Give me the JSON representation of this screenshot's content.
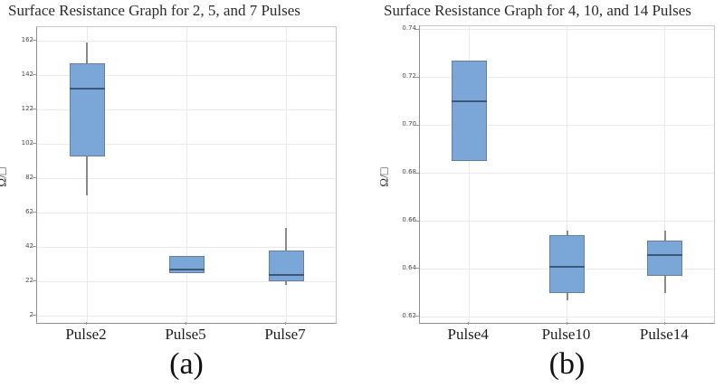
{
  "colors": {
    "box_fill": "#7aa6d8",
    "box_border": "#63809f",
    "median": "#3d5875",
    "whisker": "#8a8a8a",
    "grid": "#ebebeb",
    "plot_border": "#c9c9c9",
    "text": "#2b2b2b"
  },
  "chart_data": [
    {
      "type": "boxplot",
      "title": "Surface Resistance Graph for 2, 5, and 7 Pulses",
      "ylabel": "Ω/□",
      "caption": "(a)",
      "categories": [
        "Pulse2",
        "Pulse5",
        "Pulse7"
      ],
      "yticks": [
        2,
        22,
        42,
        62,
        82,
        102,
        122,
        142,
        162
      ],
      "ytick_labels": [
        "2",
        "22",
        "42",
        "62",
        "82",
        "102",
        "122",
        "142",
        "162"
      ],
      "ylim": [
        -2,
        170
      ],
      "grid": true,
      "legend": "none",
      "series": [
        {
          "category": "Pulse2",
          "whisker_low": 72,
          "q1": 95,
          "median": 134,
          "q3": 149,
          "whisker_high": 161
        },
        {
          "category": "Pulse5",
          "whisker_low": 27,
          "q1": 27,
          "median": 29,
          "q3": 37,
          "whisker_high": 37
        },
        {
          "category": "Pulse7",
          "whisker_low": 20,
          "q1": 22,
          "median": 26,
          "q3": 40,
          "whisker_high": 53
        }
      ]
    },
    {
      "type": "boxplot",
      "title": "Surface Resistance Graph for 4, 10, and 14 Pulses",
      "ylabel": "Ω/□",
      "caption": "(b)",
      "categories": [
        "Pulse4",
        "Pulse10",
        "Pulse14"
      ],
      "yticks": [
        0.62,
        0.64,
        0.66,
        0.68,
        0.7,
        0.72,
        0.74
      ],
      "ytick_labels": [
        "0.62",
        "0.64",
        "0.66",
        "0.68",
        "0.70",
        "0.72",
        "0.74"
      ],
      "ylim": [
        0.6175,
        0.7415
      ],
      "grid": true,
      "legend": "none",
      "series": [
        {
          "category": "Pulse4",
          "whisker_low": 0.685,
          "q1": 0.685,
          "median": 0.71,
          "q3": 0.727,
          "whisker_high": 0.727
        },
        {
          "category": "Pulse10",
          "whisker_low": 0.627,
          "q1": 0.63,
          "median": 0.641,
          "q3": 0.654,
          "whisker_high": 0.656
        },
        {
          "category": "Pulse14",
          "whisker_low": 0.63,
          "q1": 0.637,
          "median": 0.646,
          "q3": 0.652,
          "whisker_high": 0.656
        }
      ]
    }
  ]
}
